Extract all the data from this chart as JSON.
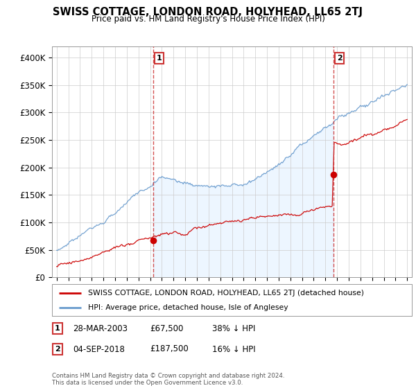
{
  "title": "SWISS COTTAGE, LONDON ROAD, HOLYHEAD, LL65 2TJ",
  "subtitle": "Price paid vs. HM Land Registry's House Price Index (HPI)",
  "legend_line1": "SWISS COTTAGE, LONDON ROAD, HOLYHEAD, LL65 2TJ (detached house)",
  "legend_line2": "HPI: Average price, detached house, Isle of Anglesey",
  "footer": "Contains HM Land Registry data © Crown copyright and database right 2024.\nThis data is licensed under the Open Government Licence v3.0.",
  "table": [
    {
      "num": "1",
      "date": "28-MAR-2003",
      "price": "£67,500",
      "hpi": "38% ↓ HPI"
    },
    {
      "num": "2",
      "date": "04-SEP-2018",
      "price": "£187,500",
      "hpi": "16% ↓ HPI"
    }
  ],
  "event1_year": 2003.24,
  "event1_price": 67500,
  "event2_year": 2018.67,
  "event2_price": 187500,
  "ylim": [
    0,
    420000
  ],
  "yticks": [
    0,
    50000,
    100000,
    150000,
    200000,
    250000,
    300000,
    350000,
    400000
  ],
  "ytick_labels": [
    "£0",
    "£50K",
    "£100K",
    "£150K",
    "£200K",
    "£250K",
    "£300K",
    "£350K",
    "£400K"
  ],
  "line_color_red": "#cc0000",
  "line_color_blue": "#6699cc",
  "fill_color_blue": "#ddeeff",
  "grid_color": "#cccccc",
  "vline_color": "#cc3333",
  "bg_color": "#ffffff",
  "xmin": 1995,
  "xmax": 2025
}
